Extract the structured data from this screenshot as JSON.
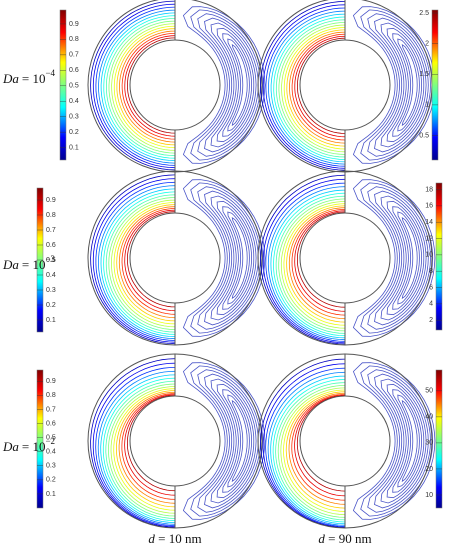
{
  "rows": [
    {
      "label": {
        "name": "Da",
        "eq": "= 10",
        "exp": "−4"
      },
      "colorbars": [
        {
          "ticks": [
            0.1,
            0.2,
            0.3,
            0.4,
            0.5,
            0.6,
            0.7,
            0.8,
            0.9
          ],
          "lim": [
            0.02,
            0.99
          ]
        },
        {
          "ticks": [
            0.5,
            1,
            1.5,
            2,
            2.5
          ],
          "lim": [
            0.1,
            2.55
          ]
        }
      ]
    },
    {
      "label": {
        "name": "Da",
        "eq": "= 10",
        "exp": "−3"
      },
      "colorbars": [
        {
          "ticks": [
            0.1,
            0.2,
            0.3,
            0.4,
            0.5,
            0.6,
            0.7,
            0.8,
            0.9
          ],
          "lim": [
            0.02,
            0.98
          ]
        },
        {
          "ticks": [
            2,
            4,
            6,
            8,
            10,
            12,
            14,
            16,
            18
          ],
          "lim": [
            0.8,
            18.8
          ]
        }
      ]
    },
    {
      "label": {
        "name": "Da",
        "eq": "= 10",
        "exp": "−2"
      },
      "colorbars": [
        {
          "ticks": [
            0.1,
            0.2,
            0.3,
            0.4,
            0.5,
            0.6,
            0.7,
            0.8,
            0.9
          ],
          "lim": [
            0.0,
            0.98
          ]
        },
        {
          "ticks": [
            10,
            20,
            30,
            40,
            50
          ],
          "lim": [
            5,
            58
          ]
        }
      ]
    }
  ],
  "columns": [
    {
      "var": "d",
      "text": " = 10 nm"
    },
    {
      "var": "d",
      "text": " = 90 nm"
    }
  ]
}
